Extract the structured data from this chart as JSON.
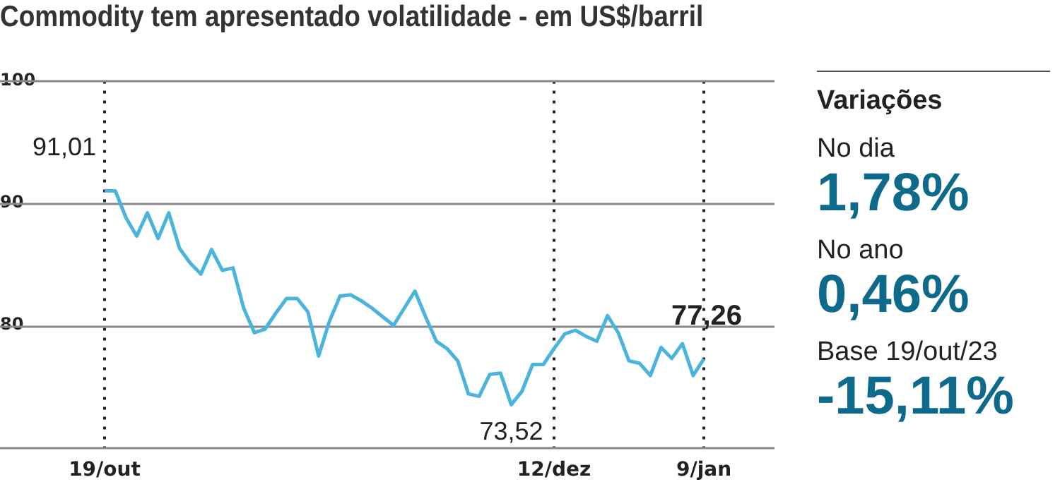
{
  "chart_data": [
    {
      "type": "line",
      "title": "Commodity tem apresentado volatilidade - em US$/barril",
      "categories": [
        "19/out",
        null,
        null,
        null,
        null,
        null,
        null,
        null,
        null,
        null,
        null,
        null,
        null,
        null,
        null,
        null,
        null,
        null,
        null,
        null,
        null,
        null,
        null,
        null,
        null,
        null,
        null,
        null,
        null,
        null,
        null,
        null,
        null,
        null,
        null,
        null,
        null,
        null,
        null,
        null,
        null,
        null,
        "12/dez",
        null,
        null,
        null,
        null,
        null,
        null,
        null,
        null,
        null,
        null,
        null,
        null,
        null,
        "9/jan"
      ],
      "series": [
        {
          "color": "#4ab4dc",
          "values": [
            91.01,
            91.0,
            88.8,
            87.3,
            89.2,
            87.1,
            89.2,
            86.3,
            85.1,
            84.2,
            86.2,
            84.5,
            84.7,
            81.4,
            79.4,
            79.7,
            81.0,
            82.2,
            82.2,
            81.1,
            77.5,
            80.3,
            82.4,
            82.5,
            82.0,
            81.4,
            80.7,
            80.0,
            81.4,
            82.8,
            80.7,
            78.7,
            78.1,
            77.1,
            74.4,
            74.2,
            76.0,
            76.1,
            73.52,
            74.6,
            76.8,
            76.8,
            78.1,
            79.3,
            79.6,
            79.1,
            78.7,
            80.8,
            79.4,
            77.1,
            76.9,
            75.9,
            78.2,
            77.3,
            78.5,
            75.9,
            77.26
          ],
          "value_labels": [
            "91,01",
            null,
            null,
            null,
            null,
            null,
            null,
            null,
            null,
            null,
            null,
            null,
            null,
            null,
            null,
            null,
            null,
            null,
            null,
            null,
            null,
            null,
            null,
            null,
            null,
            null,
            null,
            null,
            null,
            null,
            null,
            null,
            null,
            null,
            null,
            null,
            null,
            null,
            "73,52",
            null,
            null,
            null,
            null,
            null,
            null,
            null,
            null,
            null,
            null,
            null,
            null,
            null,
            null,
            null,
            null,
            null,
            "77,26"
          ]
        }
      ],
      "ylim": [
        70,
        100
      ],
      "yticks": [
        80,
        90,
        100
      ],
      "grid": true,
      "legend": false,
      "marker": "none",
      "line_style": "solid"
    },
    {
      "type": "other",
      "title": "Variações",
      "annotations": [
        "No dia",
        "1,78%",
        "No ano",
        "0,46%",
        "Base 19/out/23",
        "-15,11%"
      ]
    }
  ]
}
